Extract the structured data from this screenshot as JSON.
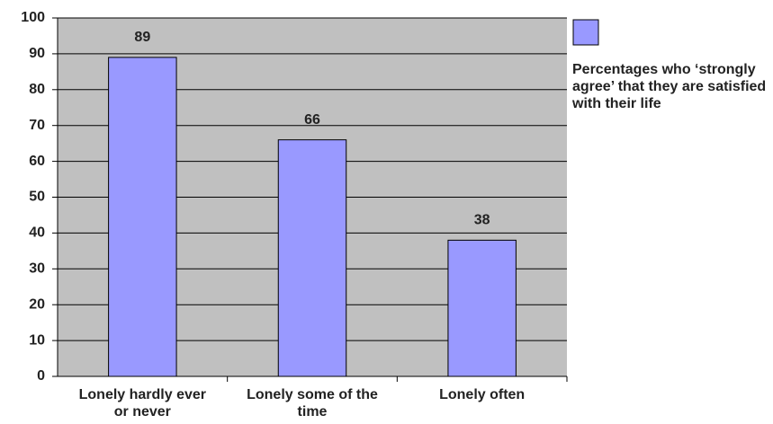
{
  "chart_data": {
    "type": "bar",
    "categories": [
      "Lonely hardly ever or never",
      "Lonely some of the time",
      "Lonely often"
    ],
    "series": [
      {
        "name": "Percentages who ‘strongly agree’ that they are satisfied with their life",
        "color": "#9999ff",
        "values": [
          89,
          66,
          38
        ]
      }
    ],
    "ylim": [
      0,
      100
    ],
    "yticks": [
      0,
      10,
      20,
      30,
      40,
      50,
      60,
      70,
      80,
      90,
      100
    ],
    "grid": true,
    "plot_background": "#c0c0c0",
    "legend": "right"
  }
}
